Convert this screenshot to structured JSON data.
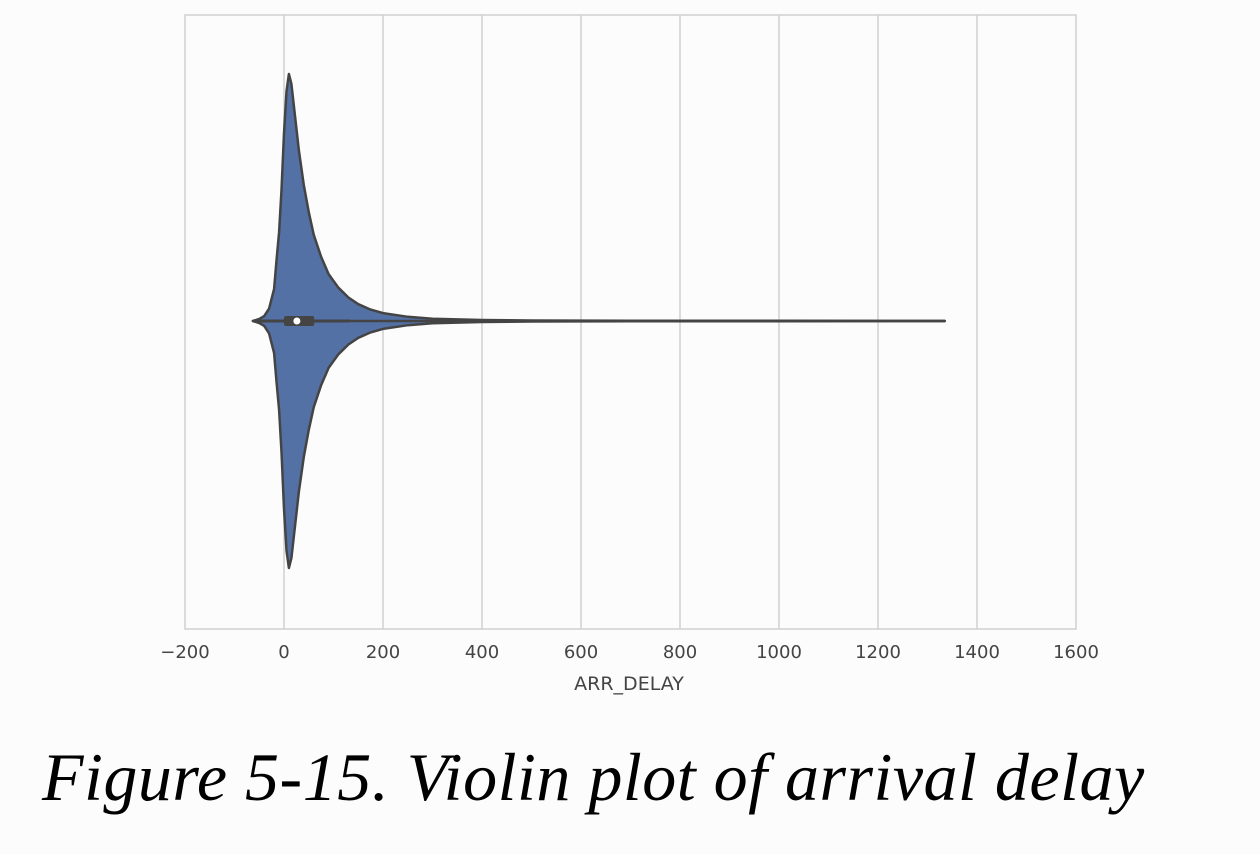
{
  "caption": "Figure 5-15. Violin plot of arrival delay",
  "chart_data": {
    "type": "violin",
    "orientation": "horizontal",
    "xlabel": "ARR_DELAY",
    "ylabel": "",
    "xlim": [
      -200,
      1600
    ],
    "xticks": [
      -200,
      0,
      200,
      400,
      600,
      800,
      1000,
      1200,
      1400,
      1600
    ],
    "xtick_labels": [
      "−200",
      "0",
      "200",
      "400",
      "600",
      "800",
      "1000",
      "1200",
      "1400",
      "1600"
    ],
    "grid": "vertical",
    "fill_color": "#5471a6",
    "edge_color": "#444444",
    "range": [
      -63,
      1335
    ],
    "quartiles": [
      0,
      26,
      61
    ],
    "median": 26,
    "whiskers": [
      -51,
      133
    ],
    "density_profile": {
      "x": [
        -63,
        -50,
        -40,
        -30,
        -20,
        -15,
        -10,
        -5,
        0,
        5,
        10,
        15,
        20,
        25,
        30,
        40,
        50,
        60,
        75,
        90,
        110,
        130,
        150,
        175,
        200,
        250,
        300,
        400,
        500,
        700,
        1000,
        1335
      ],
      "half_width": [
        0.0,
        0.008,
        0.02,
        0.05,
        0.13,
        0.25,
        0.36,
        0.53,
        0.76,
        0.93,
        1.0,
        0.96,
        0.87,
        0.78,
        0.69,
        0.55,
        0.44,
        0.35,
        0.26,
        0.19,
        0.135,
        0.095,
        0.068,
        0.046,
        0.032,
        0.017,
        0.009,
        0.004,
        0.0022,
        0.0012,
        0.0008,
        0.0006
      ]
    }
  }
}
